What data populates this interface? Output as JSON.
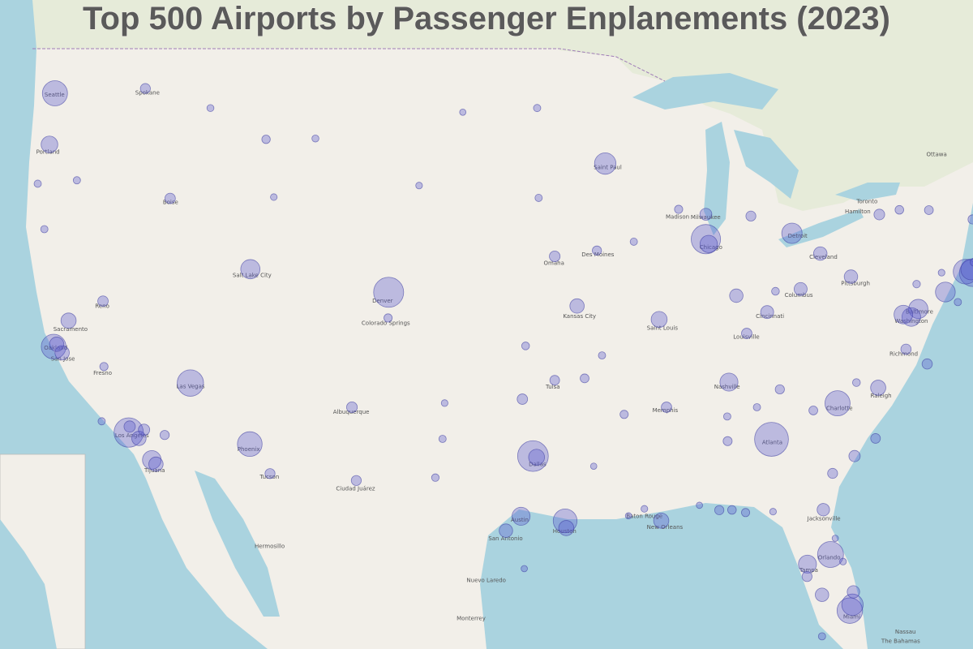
{
  "title": "Top 500 Airports by Passenger Enplanements (2023)",
  "airports": [
    {
      "lon": -84.43,
      "lat": 33.64,
      "enplanements_millions": 50
    },
    {
      "lon": -97.04,
      "lat": 32.9,
      "enplanements_millions": 40
    },
    {
      "lon": -104.67,
      "lat": 39.86,
      "enplanements_millions": 38
    },
    {
      "lon": -87.9,
      "lat": 41.98,
      "enplanements_millions": 36
    },
    {
      "lon": -118.41,
      "lat": 33.94,
      "enplanements_millions": 36
    },
    {
      "lon": -73.78,
      "lat": 40.64,
      "enplanements_millions": 30
    },
    {
      "lon": -115.15,
      "lat": 36.08,
      "enplanements_millions": 28
    },
    {
      "lon": -81.31,
      "lat": 28.43,
      "enplanements_millions": 27
    },
    {
      "lon": -80.29,
      "lat": 25.79,
      "enplanements_millions": 26
    },
    {
      "lon": -80.94,
      "lat": 35.21,
      "enplanements_millions": 25
    },
    {
      "lon": -122.31,
      "lat": 47.45,
      "enplanements_millions": 25
    },
    {
      "lon": -112.01,
      "lat": 33.43,
      "enplanements_millions": 24
    },
    {
      "lon": -74.17,
      "lat": 40.69,
      "enplanements_millions": 24
    },
    {
      "lon": -122.38,
      "lat": 37.62,
      "enplanements_millions": 24
    },
    {
      "lon": -95.34,
      "lat": 29.98,
      "enplanements_millions": 22
    },
    {
      "lon": -71.01,
      "lat": 42.36,
      "enplanements_millions": 20
    },
    {
      "lon": -80.15,
      "lat": 26.07,
      "enplanements_millions": 17
    },
    {
      "lon": -93.22,
      "lat": 44.88,
      "enplanements_millions": 17
    },
    {
      "lon": -73.87,
      "lat": 40.78,
      "enplanements_millions": 16
    },
    {
      "lon": -83.35,
      "lat": 42.21,
      "enplanements_millions": 15
    },
    {
      "lon": -75.24,
      "lat": 39.87,
      "enplanements_millions": 14
    },
    {
      "lon": -111.98,
      "lat": 40.79,
      "enplanements_millions": 13
    },
    {
      "lon": -76.67,
      "lat": 39.18,
      "enplanements_millions": 13
    },
    {
      "lon": -77.04,
      "lat": 38.85,
      "enplanements_millions": 12
    },
    {
      "lon": -117.19,
      "lat": 32.73,
      "enplanements_millions": 12
    },
    {
      "lon": -77.46,
      "lat": 38.95,
      "enplanements_millions": 12
    },
    {
      "lon": -82.53,
      "lat": 27.98,
      "enplanements_millions": 11
    },
    {
      "lon": -86.68,
      "lat": 36.12,
      "enplanements_millions": 11
    },
    {
      "lon": -97.67,
      "lat": 30.19,
      "enplanements_millions": 11
    },
    {
      "lon": -87.75,
      "lat": 41.79,
      "enplanements_millions": 10
    },
    {
      "lon": -96.85,
      "lat": 32.85,
      "enplanements_millions": 8
    },
    {
      "lon": -122.6,
      "lat": 45.59,
      "enplanements_millions": 9
    },
    {
      "lon": -90.37,
      "lat": 38.75,
      "enplanements_millions": 8
    },
    {
      "lon": -78.79,
      "lat": 35.88,
      "enplanements_millions": 7
    },
    {
      "lon": -95.28,
      "lat": 29.65,
      "enplanements_millions": 7
    },
    {
      "lon": -121.59,
      "lat": 38.7,
      "enplanements_millions": 7
    },
    {
      "lon": -90.26,
      "lat": 29.99,
      "enplanements_millions": 7
    },
    {
      "lon": -121.93,
      "lat": 37.36,
      "enplanements_millions": 6
    },
    {
      "lon": -117.87,
      "lat": 33.68,
      "enplanements_millions": 6
    },
    {
      "lon": -94.71,
      "lat": 39.3,
      "enplanements_millions": 6
    },
    {
      "lon": -122.22,
      "lat": 37.72,
      "enplanements_millions": 6
    },
    {
      "lon": -116.97,
      "lat": 32.54,
      "enplanements_millions": 6
    },
    {
      "lon": -98.47,
      "lat": 29.53,
      "enplanements_millions": 5
    },
    {
      "lon": -81.76,
      "lat": 26.54,
      "enplanements_millions": 5
    },
    {
      "lon": -81.85,
      "lat": 41.41,
      "enplanements_millions": 5
    },
    {
      "lon": -86.29,
      "lat": 39.72,
      "enplanements_millions": 5
    },
    {
      "lon": -80.23,
      "lat": 40.49,
      "enplanements_millions": 5
    },
    {
      "lon": -84.66,
      "lat": 39.05,
      "enplanements_millions": 4.5
    },
    {
      "lon": -82.89,
      "lat": 39.99,
      "enplanements_millions": 4.5
    },
    {
      "lon": -81.69,
      "lat": 30.49,
      "enplanements_millions": 4
    },
    {
      "lon": -80.1,
      "lat": 26.68,
      "enplanements_millions": 4
    },
    {
      "lon": -87.9,
      "lat": 42.95,
      "enplanements_millions": 3.5
    },
    {
      "lon": -72.68,
      "lat": 41.94,
      "enplanements_millions": 3.5
    },
    {
      "lon": -118.36,
      "lat": 34.2,
      "enplanements_millions": 3
    },
    {
      "lon": -117.6,
      "lat": 34.06,
      "enplanements_millions": 3
    },
    {
      "lon": -80.04,
      "lat": 32.9,
      "enplanements_millions": 3
    },
    {
      "lon": -106.61,
      "lat": 35.04,
      "enplanements_millions": 2.5
    },
    {
      "lon": -95.89,
      "lat": 41.3,
      "enplanements_millions": 2.5
    },
    {
      "lon": -78.73,
      "lat": 42.94,
      "enplanements_millions": 2.5
    },
    {
      "lon": -116.22,
      "lat": 43.56,
      "enplanements_millions": 2.3
    },
    {
      "lon": -119.77,
      "lat": 39.5,
      "enplanements_millions": 2.3
    },
    {
      "lon": -97.6,
      "lat": 35.39,
      "enplanements_millions": 2.3
    },
    {
      "lon": -89.98,
      "lat": 35.04,
      "enplanements_millions": 2.3
    },
    {
      "lon": -85.74,
      "lat": 38.17,
      "enplanements_millions": 2.3
    },
    {
      "lon": -77.32,
      "lat": 37.51,
      "enplanements_millions": 2.2
    },
    {
      "lon": -76.2,
      "lat": 36.89,
      "enplanements_millions": 2.2
    },
    {
      "lon": -106.38,
      "lat": 31.81,
      "enplanements_millions": 2
    },
    {
      "lon": -110.94,
      "lat": 32.12,
      "enplanements_millions": 2
    },
    {
      "lon": -117.53,
      "lat": 47.62,
      "enplanements_millions": 2
    },
    {
      "lon": -81.2,
      "lat": 32.13,
      "enplanements_millions": 2
    },
    {
      "lon": -82.55,
      "lat": 27.4,
      "enplanements_millions": 2
    },
    {
      "lon": -85.52,
      "lat": 42.88,
      "enplanements_millions": 2
    },
    {
      "lon": -71.43,
      "lat": 41.72,
      "enplanements_millions": 2
    },
    {
      "lon": -95.89,
      "lat": 36.2,
      "enplanements_millions": 1.8
    },
    {
      "lon": -78.93,
      "lat": 33.68,
      "enplanements_millions": 1.8
    },
    {
      "lon": -116.51,
      "lat": 33.83,
      "enplanements_millions": 1.5
    },
    {
      "lon": -73.8,
      "lat": 42.75,
      "enplanements_millions": 1.5
    },
    {
      "lon": -83.99,
      "lat": 35.81,
      "enplanements_millions": 1.5
    },
    {
      "lon": -87.19,
      "lat": 30.47,
      "enplanements_millions": 1.5
    },
    {
      "lon": -93.66,
      "lat": 41.53,
      "enplanements_millions": 1.5
    },
    {
      "lon": -86.75,
      "lat": 33.56,
      "enplanements_millions": 1.4
    },
    {
      "lon": -82.22,
      "lat": 34.9,
      "enplanements_millions": 1.3
    },
    {
      "lon": -94.31,
      "lat": 36.28,
      "enplanements_millions": 1.3
    },
    {
      "lon": -76.11,
      "lat": 43.11,
      "enplanements_millions": 1.3
    },
    {
      "lon": -86.52,
      "lat": 30.48,
      "enplanements_millions": 1.2
    },
    {
      "lon": -77.67,
      "lat": 43.12,
      "enplanements_millions": 1.2
    },
    {
      "lon": -111.15,
      "lat": 45.78,
      "enplanements_millions": 1.1
    },
    {
      "lon": -70.31,
      "lat": 43.65,
      "enplanements_millions": 1.1
    },
    {
      "lon": -85.8,
      "lat": 30.36,
      "enplanements_millions": 1
    },
    {
      "lon": -92.22,
      "lat": 34.73,
      "enplanements_millions": 1
    },
    {
      "lon": -89.34,
      "lat": 43.14,
      "enplanements_millions": 1
    },
    {
      "lon": -104.7,
      "lat": 38.81,
      "enplanements_millions": 1
    },
    {
      "lon": -119.72,
      "lat": 36.78,
      "enplanements_millions": 1
    },
    {
      "lon": -73.71,
      "lat": 41.07,
      "enplanements_millions": 1
    },
    {
      "lon": -97.43,
      "lat": 37.65,
      "enplanements_millions": 0.8
    },
    {
      "lon": -84.22,
      "lat": 39.9,
      "enplanements_millions": 0.8
    },
    {
      "lon": -79.94,
      "lat": 36.1,
      "enplanements_millions": 0.8
    },
    {
      "lon": -102.2,
      "lat": 31.94,
      "enplanements_millions": 0.7
    },
    {
      "lon": -76.76,
      "lat": 40.19,
      "enplanements_millions": 0.7
    },
    {
      "lon": -73.1,
      "lat": 40.79,
      "enplanements_millions": 0.7
    },
    {
      "lon": -101.82,
      "lat": 33.66,
      "enplanements_millions": 0.6
    },
    {
      "lon": -91.71,
      "lat": 41.88,
      "enplanements_millions": 0.6
    },
    {
      "lon": -96.74,
      "lat": 43.58,
      "enplanements_millions": 0.6
    },
    {
      "lon": -96.82,
      "lat": 46.92,
      "enplanements_millions": 0.6
    },
    {
      "lon": -119.84,
      "lat": 34.43,
      "enplanements_millions": 0.6
    },
    {
      "lon": -123.22,
      "lat": 44.12,
      "enplanements_millions": 0.6
    },
    {
      "lon": -122.87,
      "lat": 42.37,
      "enplanements_millions": 0.6
    },
    {
      "lon": -121.15,
      "lat": 44.25,
      "enplanements_millions": 0.6
    },
    {
      "lon": -93.39,
      "lat": 37.25,
      "enplanements_millions": 0.6
    },
    {
      "lon": -86.77,
      "lat": 34.64,
      "enplanements_millions": 0.6
    },
    {
      "lon": -85.2,
      "lat": 35.04,
      "enplanements_millions": 0.6
    },
    {
      "lon": -73.15,
      "lat": 44.47,
      "enplanements_millions": 0.6
    },
    {
      "lon": -74.58,
      "lat": 39.46,
      "enplanements_millions": 0.6
    },
    {
      "lon": -81.76,
      "lat": 24.56,
      "enplanements_millions": 0.6
    },
    {
      "lon": -108.54,
      "lat": 45.81,
      "enplanements_millions": 0.5
    },
    {
      "lon": -114.09,
      "lat": 46.92,
      "enplanements_millions": 0.5
    },
    {
      "lon": -101.71,
      "lat": 35.22,
      "enplanements_millions": 0.4
    },
    {
      "lon": -110.74,
      "lat": 43.61,
      "enplanements_millions": 0.4
    },
    {
      "lon": -103.06,
      "lat": 44.05,
      "enplanements_millions": 0.4
    },
    {
      "lon": -84.35,
      "lat": 30.4,
      "enplanements_millions": 0.4
    },
    {
      "lon": -91.15,
      "lat": 30.53,
      "enplanements_millions": 0.4
    },
    {
      "lon": -75.44,
      "lat": 40.65,
      "enplanements_millions": 0.4
    },
    {
      "lon": -80.65,
      "lat": 28.1,
      "enplanements_millions": 0.4
    },
    {
      "lon": -100.75,
      "lat": 46.77,
      "enplanements_millions": 0.3
    },
    {
      "lon": -97.5,
      "lat": 27.77,
      "enplanements_millions": 0.3
    },
    {
      "lon": -88.24,
      "lat": 30.69,
      "enplanements_millions": 0.3
    },
    {
      "lon": -91.99,
      "lat": 30.21,
      "enplanements_millions": 0.3
    },
    {
      "lon": -93.83,
      "lat": 32.45,
      "enplanements_millions": 0.3
    },
    {
      "lon": -81.06,
      "lat": 29.18,
      "enplanements_millions": 0.3
    }
  ],
  "map_labels": [
    {
      "text": "Seattle",
      "lon": -122.33,
      "lat": 47.6
    },
    {
      "text": "Portland",
      "lon": -122.68,
      "lat": 45.52
    },
    {
      "text": "Spokane",
      "lon": -117.42,
      "lat": 47.66
    },
    {
      "text": "Boise",
      "lon": -116.2,
      "lat": 43.62
    },
    {
      "text": "Salt Lake City",
      "lon": -111.89,
      "lat": 40.76
    },
    {
      "text": "Reno",
      "lon": -119.81,
      "lat": 39.53
    },
    {
      "text": "Sacramento",
      "lon": -121.49,
      "lat": 38.58
    },
    {
      "text": "Oakland",
      "lon": -122.27,
      "lat": 37.8
    },
    {
      "text": "San Jose",
      "lon": -121.89,
      "lat": 37.34
    },
    {
      "text": "Fresno",
      "lon": -119.79,
      "lat": 36.74
    },
    {
      "text": "Las Vegas",
      "lon": -115.14,
      "lat": 36.17
    },
    {
      "text": "Los Angeles",
      "lon": -118.24,
      "lat": 34.05
    },
    {
      "text": "Tijuana",
      "lon": -117.04,
      "lat": 32.51
    },
    {
      "text": "Phoenix",
      "lon": -112.07,
      "lat": 33.45
    },
    {
      "text": "Tucson",
      "lon": -110.97,
      "lat": 32.22
    },
    {
      "text": "Albuquerque",
      "lon": -106.65,
      "lat": 35.08
    },
    {
      "text": "Ciudad Juárez",
      "lon": -106.42,
      "lat": 31.69
    },
    {
      "text": "Denver",
      "lon": -104.99,
      "lat": 39.74
    },
    {
      "text": "Colorado Springs",
      "lon": -104.82,
      "lat": 38.83
    },
    {
      "text": "Dallas",
      "lon": -96.8,
      "lat": 32.78
    },
    {
      "text": "Tulsa",
      "lon": -95.99,
      "lat": 36.15
    },
    {
      "text": "Austin",
      "lon": -97.74,
      "lat": 30.27
    },
    {
      "text": "San Antonio",
      "lon": -98.49,
      "lat": 29.42
    },
    {
      "text": "Houston",
      "lon": -95.37,
      "lat": 29.76
    },
    {
      "text": "Omaha",
      "lon": -95.93,
      "lat": 41.26
    },
    {
      "text": "Des Moines",
      "lon": -93.61,
      "lat": 41.59
    },
    {
      "text": "Saint Paul",
      "lon": -93.09,
      "lat": 44.95
    },
    {
      "text": "Kansas City",
      "lon": -94.58,
      "lat": 39.1
    },
    {
      "text": "Saint Louis",
      "lon": -90.2,
      "lat": 38.63
    },
    {
      "text": "Memphis",
      "lon": -90.05,
      "lat": 35.15
    },
    {
      "text": "New Orleans",
      "lon": -90.07,
      "lat": 29.95
    },
    {
      "text": "Baton Rouge",
      "lon": -91.15,
      "lat": 30.45
    },
    {
      "text": "Madison",
      "lon": -89.4,
      "lat": 43.07
    },
    {
      "text": "Milwaukee",
      "lon": -87.91,
      "lat": 43.04
    },
    {
      "text": "Chicago",
      "lon": -87.63,
      "lat": 41.88
    },
    {
      "text": "Detroit",
      "lon": -83.05,
      "lat": 42.33
    },
    {
      "text": "Cleveland",
      "lon": -81.69,
      "lat": 41.5
    },
    {
      "text": "Columbus",
      "lon": -82.99,
      "lat": 39.96
    },
    {
      "text": "Cincinnati",
      "lon": -84.51,
      "lat": 39.1
    },
    {
      "text": "Louisville",
      "lon": -85.76,
      "lat": 38.25
    },
    {
      "text": "Nashville",
      "lon": -86.78,
      "lat": 36.16
    },
    {
      "text": "Pittsburgh",
      "lon": -79.99,
      "lat": 40.44
    },
    {
      "text": "Atlanta",
      "lon": -84.39,
      "lat": 33.75
    },
    {
      "text": "Charlotte",
      "lon": -80.84,
      "lat": 35.23
    },
    {
      "text": "Raleigh",
      "lon": -78.64,
      "lat": 35.78
    },
    {
      "text": "Richmond",
      "lon": -77.44,
      "lat": 37.54
    },
    {
      "text": "Washington",
      "lon": -77.04,
      "lat": 38.9
    },
    {
      "text": "Baltimore",
      "lon": -76.61,
      "lat": 39.29
    },
    {
      "text": "Jacksonville",
      "lon": -81.66,
      "lat": 30.33
    },
    {
      "text": "Orlando",
      "lon": -81.38,
      "lat": 28.54
    },
    {
      "text": "Tampa",
      "lon": -82.46,
      "lat": 27.95
    },
    {
      "text": "Miami",
      "lon": -80.19,
      "lat": 25.76
    },
    {
      "text": "Hermosillo",
      "lon": -110.96,
      "lat": 29.07
    },
    {
      "text": "Monterrey",
      "lon": -100.31,
      "lat": 25.69
    },
    {
      "text": "Nuevo Laredo",
      "lon": -99.51,
      "lat": 27.48
    },
    {
      "text": "Toronto",
      "lon": -79.38,
      "lat": 43.65
    },
    {
      "text": "Hamilton",
      "lon": -79.87,
      "lat": 43.26
    },
    {
      "text": "Ottawa",
      "lon": -75.7,
      "lat": 45.42
    },
    {
      "text": "Nassau",
      "lon": -77.35,
      "lat": 25.05
    },
    {
      "text": "The Bahamas",
      "lon": -77.6,
      "lat": 24.6
    }
  ]
}
